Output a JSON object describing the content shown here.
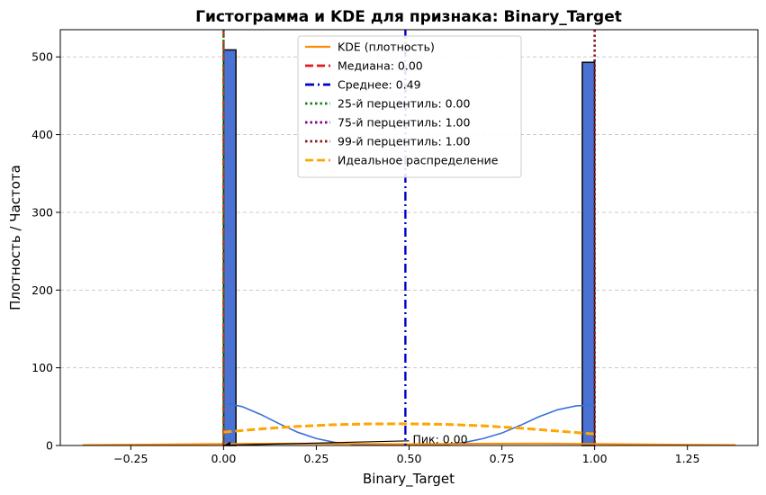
{
  "chart_data": {
    "type": "bar",
    "title": "Гистограмма и KDE для признака: Binary_Target",
    "xlabel": "Binary_Target",
    "ylabel": "Плотность / Частота",
    "xlim": [
      -0.44,
      1.44
    ],
    "ylim": [
      0,
      535
    ],
    "x_ticks": [
      -0.25,
      0.0,
      0.25,
      0.5,
      0.75,
      1.0,
      1.25
    ],
    "x_tick_labels": [
      "−0.25",
      "0.00",
      "0.25",
      "0.50",
      "0.75",
      "1.00",
      "1.25"
    ],
    "y_ticks": [
      0,
      100,
      200,
      300,
      400,
      500
    ],
    "y_tick_labels": [
      "0",
      "100",
      "200",
      "300",
      "400",
      "500"
    ],
    "grid": "horizontal-dashed",
    "legend_position": "top-center",
    "histogram": {
      "bin_width": 0.0333,
      "color": "#4a72d4",
      "edge_color": "#111111",
      "bins": [
        {
          "x0": 0.0,
          "x1": 0.0333,
          "count": 509
        },
        {
          "x0": 0.9667,
          "x1": 1.0,
          "count": 493
        }
      ]
    },
    "kde_overlay": {
      "color": "#3b6fd8",
      "points": [
        [
          0.0,
          55
        ],
        [
          0.05,
          50
        ],
        [
          0.1,
          40
        ],
        [
          0.15,
          28
        ],
        [
          0.2,
          17
        ],
        [
          0.25,
          9
        ],
        [
          0.3,
          4
        ],
        [
          0.35,
          1.5
        ],
        [
          0.4,
          0.6
        ],
        [
          0.45,
          0.3
        ],
        [
          0.5,
          0.3
        ],
        [
          0.55,
          0.5
        ],
        [
          0.6,
          1.2
        ],
        [
          0.65,
          4
        ],
        [
          0.7,
          9
        ],
        [
          0.75,
          16
        ],
        [
          0.8,
          26
        ],
        [
          0.85,
          37
        ],
        [
          0.9,
          46
        ],
        [
          0.95,
          51
        ],
        [
          1.0,
          52
        ]
      ]
    },
    "series": [
      {
        "name": "KDE (плотность)",
        "style": "solid",
        "color": "#ff8c00",
        "points": [
          [
            -0.38,
            0.6
          ],
          [
            -0.2,
            1.1
          ],
          [
            0.0,
            2.0
          ],
          [
            0.15,
            2.5
          ],
          [
            0.3,
            2.3
          ],
          [
            0.5,
            1.8
          ],
          [
            0.7,
            2.3
          ],
          [
            0.85,
            2.5
          ],
          [
            1.0,
            2.0
          ],
          [
            1.2,
            1.1
          ],
          [
            1.38,
            0.6
          ]
        ]
      },
      {
        "name": "Медиана: 0.00",
        "style": "dashed",
        "color": "#e41a1c",
        "x": 0.0
      },
      {
        "name": "Среднее: 0.49",
        "style": "dashdot",
        "color": "#0000cd",
        "x": 0.49
      },
      {
        "name": "25-й перцентиль: 0.00",
        "style": "dotted",
        "color": "#1a7f1a",
        "x": 0.0
      },
      {
        "name": "75-й перцентиль: 1.00",
        "style": "dotted",
        "color": "#800080",
        "x": 1.0
      },
      {
        "name": "99-й перцентиль: 1.00",
        "style": "dotted",
        "color": "#8b1a1a",
        "x": 1.0
      },
      {
        "name": "Идеальное распределение",
        "style": "dashed",
        "color": "#ffa500",
        "points": [
          [
            0.0,
            17.2
          ],
          [
            0.1,
            21.3
          ],
          [
            0.2,
            24.6
          ],
          [
            0.3,
            26.8
          ],
          [
            0.4,
            27.8
          ],
          [
            0.49,
            27.9
          ],
          [
            0.6,
            27.2
          ],
          [
            0.7,
            25.3
          ],
          [
            0.8,
            22.3
          ],
          [
            0.9,
            18.6
          ],
          [
            1.0,
            14.8
          ]
        ]
      }
    ],
    "annotation": {
      "text": "Пик: 0.00",
      "x": 0.5,
      "y": 2,
      "arrow_from": [
        0.5,
        6
      ],
      "arrow_to": [
        0.0,
        0.3
      ]
    }
  }
}
